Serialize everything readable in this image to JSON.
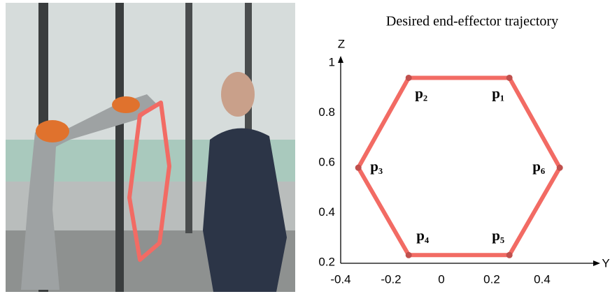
{
  "chart_data": {
    "type": "line",
    "title": "Desired end-effector trajectory",
    "x_label": "Y",
    "y_label": "Z",
    "x": [
      0.27,
      -0.13,
      -0.33,
      -0.13,
      0.27,
      0.47
    ],
    "series": [
      {
        "color": "#f26b64",
        "values": [
          0.94,
          0.94,
          0.58,
          0.23,
          0.23,
          0.58
        ]
      }
    ],
    "point_labels": [
      "p₁",
      "p₂",
      "p₃",
      "p₄",
      "p₅",
      "p₆"
    ],
    "closed": true,
    "xlim": [
      -0.4,
      0.6
    ],
    "xticks": [
      -0.4,
      -0.2,
      0,
      0.2,
      0.4
    ],
    "ylim": [
      0.2,
      1
    ],
    "yticks": [
      0.2,
      0.4,
      0.6,
      0.8,
      1
    ],
    "grid": false
  }
}
